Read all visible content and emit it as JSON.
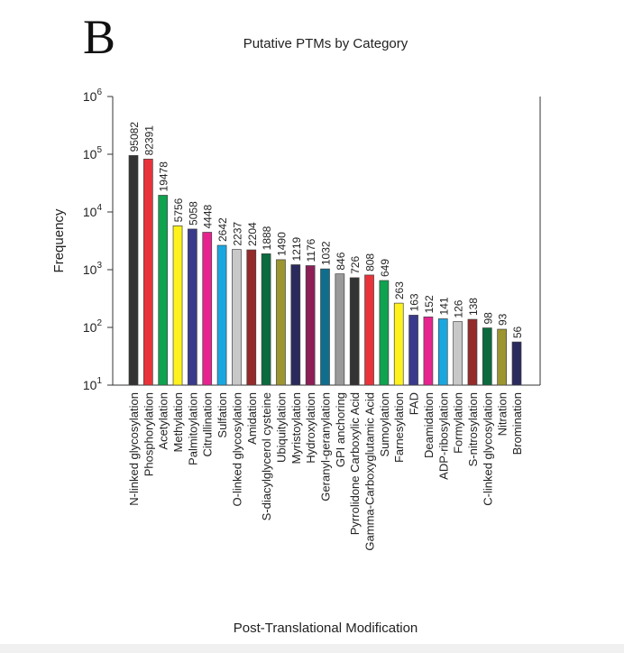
{
  "panel_label": "B",
  "chart_data": {
    "type": "bar",
    "title": "Putative PTMs by Category",
    "xlabel": "Post-Translational Modification",
    "ylabel": "Frequency",
    "yscale": "log",
    "ylim": [
      10,
      1000000
    ],
    "yticks": [
      {
        "base": "10",
        "exp": "1"
      },
      {
        "base": "10",
        "exp": "2"
      },
      {
        "base": "10",
        "exp": "3"
      },
      {
        "base": "10",
        "exp": "4"
      },
      {
        "base": "10",
        "exp": "5"
      },
      {
        "base": "10",
        "exp": "6"
      }
    ],
    "grid": false,
    "categories": [
      "N-linked glycosylation",
      "Phosphorylation",
      "Acetylation",
      "Methylation",
      "Palmitoylation",
      "Citrullination",
      "Sulfation",
      "O-linked glycosylation",
      "Amidation",
      "S-diacylglycerol cysteine",
      "Ubiquitylation",
      "Myristoylation",
      "Hydroxylation",
      "Geranyl-geranylation",
      "GPI anchoring",
      "Pyrrolidone Carboxylic Acid",
      "Gamma-Carboxyglutamic Acid",
      "Sumoylation",
      "Farnesylation",
      "FAD",
      "Deamidation",
      "ADP-ribosylation",
      "Formylation",
      "S-nitrosylation",
      "C-linked glycosylation",
      "Nitration",
      "Bromination"
    ],
    "values": [
      95082,
      82391,
      19478,
      5756,
      5058,
      4448,
      2642,
      2237,
      2204,
      1888,
      1490,
      1219,
      1176,
      1032,
      846,
      726,
      808,
      649,
      263,
      163,
      152,
      141,
      126,
      138,
      98,
      93,
      56
    ],
    "colors": [
      "#333333",
      "#e8333a",
      "#0fa24f",
      "#fff21c",
      "#3a3a8c",
      "#e6238f",
      "#1aa7e0",
      "#c8c8c8",
      "#952a2a",
      "#0b6b3e",
      "#9c9530",
      "#2a2a5c",
      "#8c1f56",
      "#0f6e8e",
      "#9a9a9a",
      "#333333",
      "#e8333a",
      "#0fa24f",
      "#fff21c",
      "#3a3a8c",
      "#e6238f",
      "#1aa7e0",
      "#c8c8c8",
      "#952a2a",
      "#0b6b3e",
      "#9c9530",
      "#2a2a5c"
    ]
  }
}
